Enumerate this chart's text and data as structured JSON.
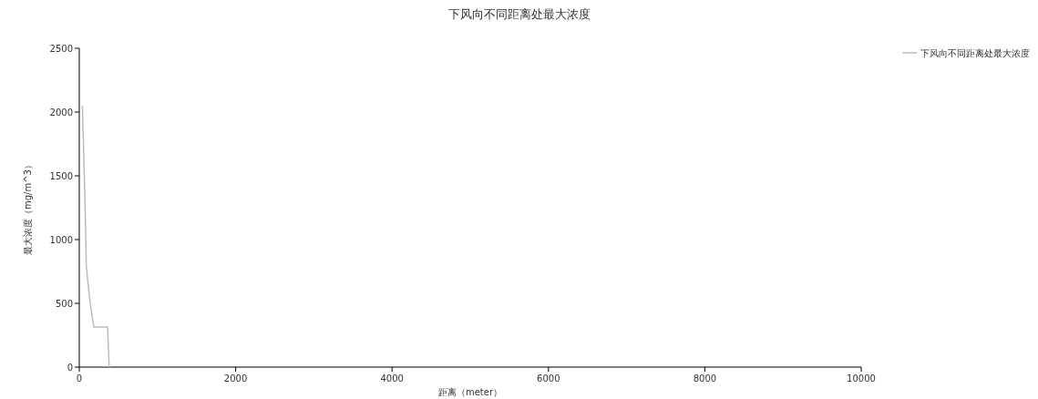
{
  "chart_data": {
    "type": "line",
    "title": "下风向不同距离处最大浓度",
    "xlabel": "距离（meter）",
    "ylabel": "最大浓度（mg/m^3）",
    "x": [
      40,
      60,
      80,
      90,
      130,
      168,
      187,
      362,
      382
    ],
    "series": [
      {
        "name": "下风向不同距离处最大浓度",
        "color": "#bbbbbb",
        "values": [
          2050,
          1600,
          1100,
          786,
          550,
          381,
          314,
          314,
          0
        ]
      }
    ],
    "xlim": [
      0,
      10000
    ],
    "xticks": [
      0,
      2000,
      4000,
      6000,
      8000,
      10000
    ],
    "ylim": [
      0,
      2500
    ],
    "yticks": [
      0,
      500,
      1000,
      1500,
      2000,
      2500
    ],
    "grid": false,
    "legend": "top right"
  }
}
